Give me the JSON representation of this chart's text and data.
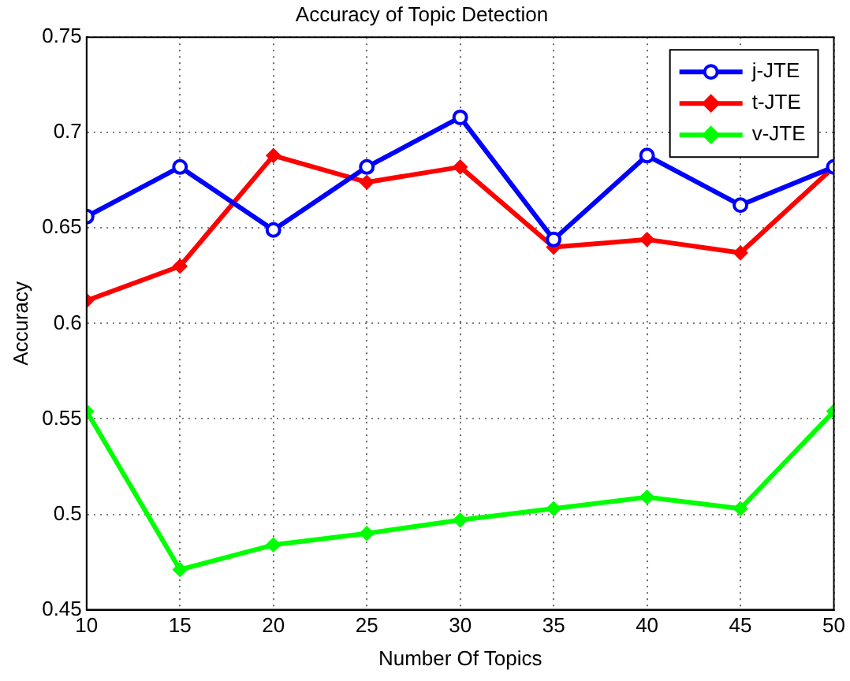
{
  "chart_data": {
    "type": "line",
    "title": "Accuracy of Topic Detection",
    "xlabel": "Number Of Topics",
    "ylabel": "Accuracy",
    "x": [
      10,
      15,
      20,
      25,
      30,
      35,
      40,
      45,
      50
    ],
    "series": [
      {
        "name": "j-JTE",
        "color": "#0000ff",
        "marker": "circle",
        "values": [
          0.656,
          0.682,
          0.649,
          0.682,
          0.708,
          0.644,
          0.688,
          0.662,
          0.682
        ]
      },
      {
        "name": "t-JTE",
        "color": "#ff0000",
        "marker": "diamond",
        "values": [
          0.612,
          0.63,
          0.688,
          0.674,
          0.682,
          0.64,
          0.644,
          0.637,
          0.682
        ]
      },
      {
        "name": "v-JTE",
        "color": "#00ff00",
        "marker": "diamond",
        "values": [
          0.554,
          0.471,
          0.484,
          0.49,
          0.497,
          0.503,
          0.509,
          0.503,
          0.554
        ]
      }
    ],
    "xlim": [
      10,
      50
    ],
    "xticks": [
      10,
      15,
      20,
      25,
      30,
      35,
      40,
      45,
      50
    ],
    "ylim": [
      0.45,
      0.75
    ],
    "yticks": [
      0.45,
      0.5,
      0.55,
      0.6,
      0.65,
      0.7,
      0.75
    ],
    "grid": true,
    "legend": "top right",
    "line_style": "solid"
  }
}
